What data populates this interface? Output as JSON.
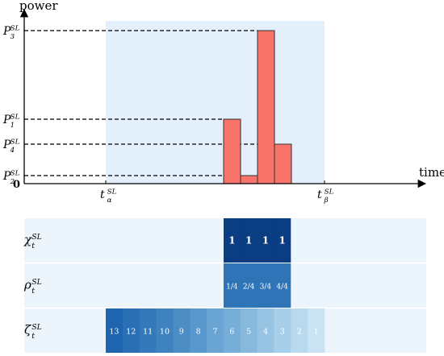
{
  "plot": {
    "ylabel": "power",
    "xlabel": "time",
    "origin": "0",
    "p_labels": [
      {
        "base": "P",
        "sup": "SL",
        "sub": "3"
      },
      {
        "base": "P",
        "sup": "SL",
        "sub": "1"
      },
      {
        "base": "P",
        "sup": "SL",
        "sub": "4"
      },
      {
        "base": "P",
        "sup": "SL",
        "sub": "2"
      }
    ],
    "t_labels": [
      {
        "base": "t",
        "sup": "SL",
        "sub": "α"
      },
      {
        "base": "t",
        "sup": "SL",
        "sub": "β"
      }
    ],
    "bar_color": "#f8736a",
    "window_color": "#e3f0fb"
  },
  "chart_data": {
    "type": "bar",
    "title": "",
    "xlabel": "time",
    "ylabel": "power",
    "levels": {
      "P1": 0.8,
      "P2": 0.1,
      "P3": 1.9,
      "P4": 0.49
    },
    "bars": [
      {
        "level": "P1",
        "value": 0.8
      },
      {
        "level": "P2",
        "value": 0.1
      },
      {
        "level": "P3",
        "value": 1.9
      },
      {
        "level": "P4",
        "value": 0.49
      }
    ]
  },
  "rows": [
    {
      "symbol": {
        "base": "χ",
        "sup": "SL",
        "sub": "t"
      },
      "cells": [
        "1",
        "1",
        "1",
        "1"
      ],
      "colors": [
        "#0b3d82",
        "#0b3d82",
        "#0b3d82",
        "#0b3d82"
      ],
      "text_color": "#ffffff",
      "bold": true
    },
    {
      "symbol": {
        "base": "ρ",
        "sup": "SL",
        "sub": "t"
      },
      "cells": [
        "1/4",
        "2/4",
        "3/4",
        "4/4"
      ],
      "colors": [
        "#2e74b7",
        "#2e74b7",
        "#2e74b7",
        "#2e74b7"
      ],
      "text_color": "#ffffff",
      "bold": false
    },
    {
      "symbol": {
        "base": "ζ",
        "sup": "SL",
        "sub": "t"
      },
      "cells": [
        "13",
        "12",
        "11",
        "10",
        "9",
        "8",
        "7",
        "6",
        "5",
        "4",
        "3",
        "2",
        "1"
      ],
      "colors": [
        "#1d65ae",
        "#2a6fb4",
        "#3479ba",
        "#3f82c0",
        "#4c8dc6",
        "#5998cc",
        "#69a4d2",
        "#77aed7",
        "#87b9dd",
        "#98c4e3",
        "#a8cfe9",
        "#b8d9ee",
        "#cae3f3"
      ],
      "text_color": "#ffffff",
      "bold": false
    }
  ]
}
